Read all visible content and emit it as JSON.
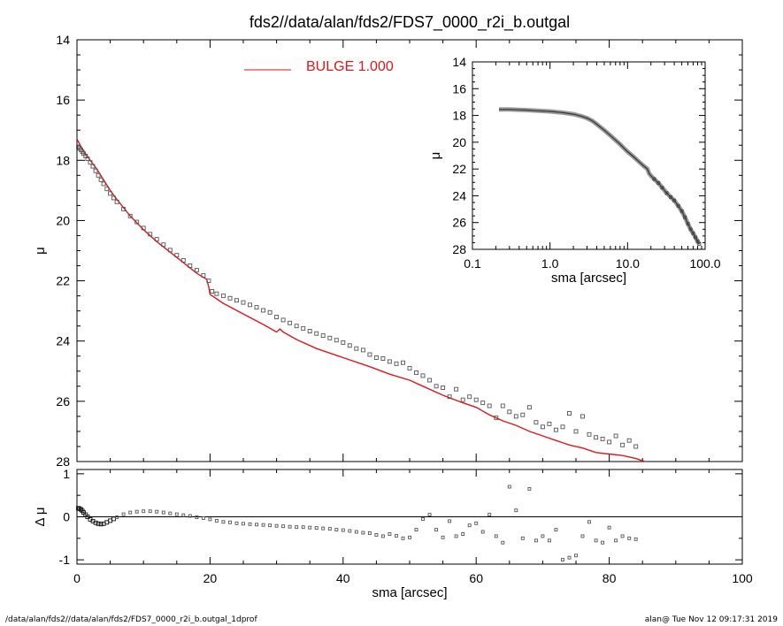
{
  "title": "fds2//data/alan/fds2/FDS7_0000_r2i_b.outgal",
  "footer_left": "/data/alan/fds2//data/alan/fds2/FDS7_0000_r2i_b.outgal_1dprof",
  "footer_right": "alan@  Tue Nov 12 09:17:31 2019",
  "colors": {
    "model": "#e4161b",
    "data": "#555555",
    "axis": "#000000"
  },
  "chart_data": [
    {
      "id": "main",
      "type": "scatter",
      "title": "fds2//data/alan/fds2/FDS7_0000_r2i_b.outgal",
      "xlabel": "",
      "ylabel": "μ",
      "xlim": [
        0,
        100
      ],
      "ylim": [
        28,
        14
      ],
      "y_reversed": true,
      "xticks": [
        "0",
        "20",
        "40",
        "60",
        "80",
        "100"
      ],
      "yticks": [
        "14",
        "16",
        "18",
        "20",
        "22",
        "24",
        "26",
        "28"
      ],
      "legend": {
        "label": "BULGE  1.000",
        "position": "top-center"
      },
      "series": [
        {
          "name": "BULGE  1.000",
          "kind": "line",
          "x": [
            0,
            0.5,
            1,
            2,
            3,
            4,
            5,
            6,
            8,
            10,
            12,
            14,
            16,
            18,
            19.5,
            19.8,
            20,
            22,
            25,
            28,
            30,
            30.5,
            31,
            33,
            36,
            40,
            44,
            47,
            50,
            52,
            55,
            58,
            60,
            62,
            64,
            66,
            68,
            70,
            72,
            74,
            76,
            78,
            80,
            82,
            84,
            86
          ],
          "y": [
            17.3,
            17.5,
            17.7,
            18.0,
            18.3,
            18.65,
            19.0,
            19.3,
            19.85,
            20.3,
            20.7,
            21.05,
            21.4,
            21.75,
            21.95,
            22.2,
            22.45,
            22.75,
            23.1,
            23.45,
            23.7,
            23.6,
            23.7,
            23.95,
            24.25,
            24.55,
            24.85,
            25.1,
            25.3,
            25.5,
            25.8,
            26.05,
            26.2,
            26.45,
            26.65,
            26.8,
            27.0,
            27.15,
            27.3,
            27.45,
            27.55,
            27.7,
            27.75,
            27.8,
            27.9,
            28.05
          ]
        },
        {
          "name": "",
          "kind": "points",
          "x": [
            0.2,
            0.4,
            0.6,
            0.8,
            1.0,
            1.3,
            1.6,
            2.0,
            2.4,
            2.8,
            3.2,
            3.6,
            4.0,
            4.5,
            5.0,
            5.5,
            6.0,
            7,
            8,
            9,
            10,
            11,
            12,
            13,
            14,
            15,
            16,
            17,
            18,
            19,
            19.8,
            20.3,
            21,
            22,
            23,
            24,
            25,
            26,
            27,
            28,
            29,
            30,
            31,
            32,
            33,
            34,
            35,
            36,
            37,
            38,
            39,
            40,
            41,
            42,
            43,
            44,
            45,
            46,
            47,
            48,
            49,
            50,
            51,
            52,
            53,
            54,
            55,
            56,
            57,
            58,
            59,
            60,
            61,
            62,
            63,
            64,
            65,
            66,
            67,
            68,
            69,
            70,
            71,
            72,
            73,
            74,
            75,
            76,
            77,
            78,
            79,
            80,
            81,
            82,
            83,
            84
          ],
          "y": [
            17.55,
            17.6,
            17.65,
            17.72,
            17.78,
            17.86,
            17.95,
            18.07,
            18.2,
            18.35,
            18.5,
            18.65,
            18.78,
            18.95,
            19.1,
            19.25,
            19.38,
            19.62,
            19.85,
            20.05,
            20.25,
            20.45,
            20.62,
            20.8,
            20.98,
            21.15,
            21.32,
            21.5,
            21.65,
            21.82,
            22.0,
            22.35,
            22.43,
            22.5,
            22.58,
            22.65,
            22.72,
            22.8,
            22.88,
            22.98,
            23.05,
            23.2,
            23.3,
            23.4,
            23.5,
            23.58,
            23.67,
            23.75,
            23.82,
            23.9,
            23.97,
            24.05,
            24.15,
            24.25,
            24.3,
            24.45,
            24.55,
            24.58,
            24.68,
            24.75,
            24.72,
            24.9,
            25.05,
            25.15,
            25.3,
            25.5,
            25.55,
            25.85,
            25.6,
            25.95,
            25.85,
            25.95,
            26.05,
            26.15,
            26.55,
            26.15,
            26.35,
            26.5,
            26.45,
            26.2,
            26.7,
            26.85,
            26.75,
            26.95,
            26.85,
            26.4,
            27.0,
            26.5,
            27.1,
            27.2,
            27.25,
            27.35,
            27.15,
            27.45,
            27.3,
            27.5
          ]
        }
      ]
    },
    {
      "id": "inset",
      "type": "scatter",
      "xlabel": "sma [arcsec]",
      "ylabel": "μ",
      "xscale": "log",
      "xlim": [
        0.1,
        100
      ],
      "ylim": [
        28,
        14
      ],
      "y_reversed": true,
      "xticks": [
        "0.1",
        "1.0",
        "10.0",
        "100.0"
      ],
      "yticks": [
        "14",
        "16",
        "18",
        "20",
        "22",
        "24",
        "26",
        "28"
      ],
      "series": [
        {
          "name": "",
          "kind": "points",
          "x": [
            0.22,
            0.3,
            0.4,
            0.5,
            0.7,
            1.0,
            1.4,
            2.0,
            2.5,
            3.0,
            3.5,
            4.0,
            5.0,
            6.0,
            7.0,
            8.0,
            9.0,
            10,
            12,
            14,
            16,
            18,
            19,
            20,
            22,
            25,
            28,
            32,
            36,
            40,
            45,
            50,
            55,
            60,
            65,
            70,
            75,
            80,
            84
          ],
          "y": [
            17.55,
            17.55,
            17.58,
            17.6,
            17.65,
            17.7,
            17.78,
            17.9,
            18.05,
            18.2,
            18.4,
            18.65,
            19.1,
            19.5,
            19.85,
            20.15,
            20.45,
            20.7,
            21.1,
            21.45,
            21.75,
            22.0,
            22.35,
            22.5,
            22.75,
            23.05,
            23.4,
            23.8,
            24.1,
            24.35,
            24.75,
            25.15,
            25.6,
            26.1,
            26.5,
            26.8,
            27.1,
            27.4,
            27.6
          ]
        }
      ]
    },
    {
      "id": "residual",
      "type": "scatter",
      "xlabel": "sma [arcsec]",
      "ylabel": "Δ μ",
      "xlim": [
        0,
        100
      ],
      "ylim": [
        -1.1,
        1.1
      ],
      "xticks": [
        "0",
        "20",
        "40",
        "60",
        "80",
        "100"
      ],
      "yticks": [
        "-1",
        "0",
        "1"
      ],
      "zero_line": true,
      "series": [
        {
          "name": "",
          "kind": "points",
          "x": [
            0.2,
            0.4,
            0.6,
            0.8,
            1.0,
            1.3,
            1.6,
            2.0,
            2.4,
            2.8,
            3.2,
            3.6,
            4.0,
            4.5,
            5.0,
            5.5,
            6.0,
            7,
            8,
            9,
            10,
            11,
            12,
            13,
            14,
            15,
            16,
            17,
            18,
            19,
            20,
            21,
            22,
            23,
            24,
            25,
            26,
            27,
            28,
            29,
            30,
            31,
            32,
            33,
            34,
            35,
            36,
            37,
            38,
            39,
            40,
            41,
            42,
            43,
            44,
            45,
            46,
            47,
            48,
            49,
            50,
            51,
            52,
            53,
            54,
            55,
            56,
            57,
            58,
            59,
            60,
            61,
            62,
            63,
            64,
            65,
            66,
            67,
            68,
            69,
            70,
            71,
            72,
            73,
            74,
            75,
            76,
            77,
            78,
            79,
            80,
            81,
            82,
            83,
            84
          ],
          "y": [
            0.2,
            0.19,
            0.17,
            0.14,
            0.1,
            0.05,
            0.0,
            -0.06,
            -0.1,
            -0.14,
            -0.16,
            -0.17,
            -0.16,
            -0.13,
            -0.09,
            -0.05,
            -0.01,
            0.06,
            0.1,
            0.12,
            0.13,
            0.13,
            0.12,
            0.1,
            0.08,
            0.06,
            0.04,
            0.02,
            -0.01,
            -0.03,
            -0.06,
            -0.09,
            -0.12,
            -0.13,
            -0.15,
            -0.16,
            -0.17,
            -0.18,
            -0.19,
            -0.2,
            -0.21,
            -0.22,
            -0.23,
            -0.24,
            -0.24,
            -0.25,
            -0.26,
            -0.27,
            -0.28,
            -0.3,
            -0.31,
            -0.33,
            -0.35,
            -0.37,
            -0.38,
            -0.42,
            -0.45,
            -0.4,
            -0.44,
            -0.5,
            -0.48,
            -0.3,
            -0.05,
            0.05,
            -0.3,
            -0.48,
            -0.1,
            -0.45,
            -0.4,
            -0.2,
            -0.15,
            -0.35,
            0.05,
            -0.45,
            -0.6,
            0.7,
            0.15,
            -0.5,
            0.65,
            -0.55,
            -0.45,
            -0.55,
            -0.3,
            -1.0,
            -0.95,
            -0.9,
            -0.45,
            -0.12,
            -0.55,
            -0.6,
            -0.25,
            -0.55,
            -0.45,
            -0.5,
            -0.52
          ]
        }
      ]
    }
  ]
}
